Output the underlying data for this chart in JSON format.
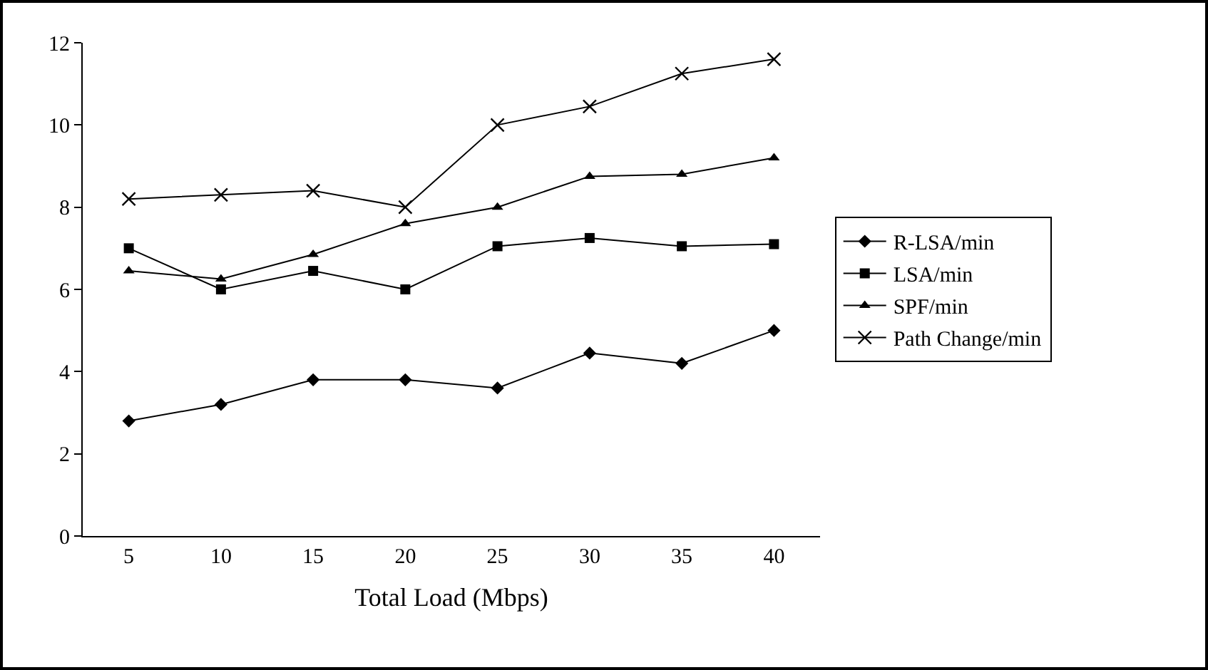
{
  "chart_data": {
    "type": "line",
    "xlabel": "Total Load (Mbps)",
    "categories": [
      "5",
      "10",
      "15",
      "20",
      "25",
      "30",
      "35",
      "40"
    ],
    "series": [
      {
        "name": "R-LSA/min",
        "color": "#000000",
        "marker": "diamond",
        "values": [
          2.8,
          3.2,
          3.8,
          3.8,
          3.6,
          4.45,
          4.2,
          5.0
        ]
      },
      {
        "name": "LSA/min",
        "color": "#000000",
        "marker": "square",
        "values": [
          7.0,
          6.0,
          6.45,
          6.0,
          7.05,
          7.25,
          7.05,
          7.1
        ]
      },
      {
        "name": "SPF/min",
        "color": "#000000",
        "marker": "triangle",
        "values": [
          6.45,
          6.25,
          6.85,
          7.6,
          8.0,
          8.75,
          8.8,
          9.2
        ]
      },
      {
        "name": "Path Change/min",
        "color": "#000000",
        "marker": "cross",
        "values": [
          8.2,
          8.3,
          8.4,
          8.0,
          10.0,
          10.45,
          11.25,
          11.6
        ]
      }
    ],
    "ylim": [
      0,
      12
    ],
    "yticks": [
      0,
      2,
      4,
      6,
      8,
      10,
      12
    ],
    "grid": false,
    "legend": "right",
    "line_style": "solid"
  }
}
